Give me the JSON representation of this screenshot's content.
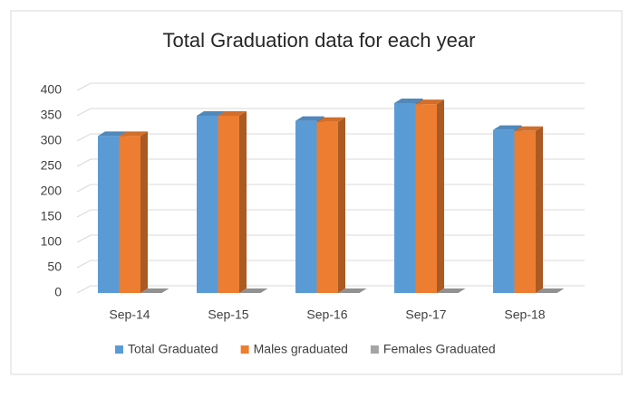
{
  "chart_data": {
    "type": "bar3d",
    "title": "Total Graduation data for each year",
    "categories": [
      "Sep-14",
      "Sep-15",
      "Sep-16",
      "Sep-17",
      "Sep-18"
    ],
    "series": [
      {
        "name": "Total Graduated",
        "color": "#5b9bd5",
        "values": [
          310,
          350,
          340,
          375,
          322
        ]
      },
      {
        "name": "Males graduated",
        "color": "#ed7d31",
        "values": [
          310,
          350,
          338,
          373,
          320
        ]
      },
      {
        "name": "Females Graduated",
        "color": "#a5a5a5",
        "values": [
          0,
          0,
          0,
          0,
          0
        ]
      }
    ],
    "ylim": [
      0,
      400
    ],
    "yticks": [
      0,
      50,
      100,
      150,
      200,
      250,
      300,
      350,
      400
    ],
    "grid": true
  }
}
